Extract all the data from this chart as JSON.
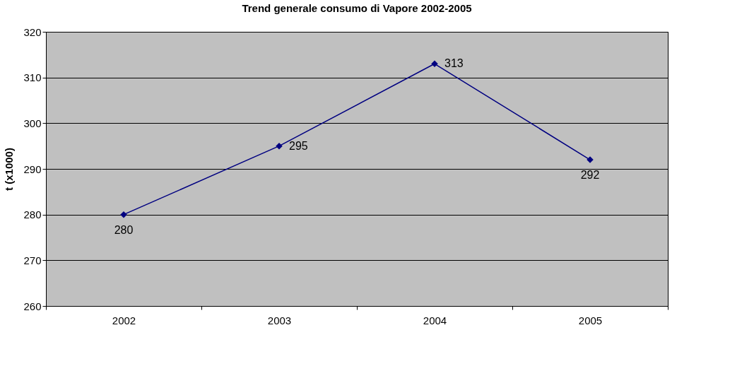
{
  "chart_data": {
    "type": "line",
    "title": "Trend generale consumo di Vapore 2002-2005",
    "ylabel": "t (x1000)",
    "categories": [
      "2002",
      "2003",
      "2004",
      "2005"
    ],
    "series": [
      {
        "color": "#000080",
        "values": [
          280,
          295,
          313,
          292
        ]
      }
    ],
    "ylim": [
      260,
      320
    ],
    "yticks": [
      260,
      270,
      280,
      290,
      300,
      310,
      320
    ],
    "grid": "y",
    "marker": "diamond",
    "line_style": "solid",
    "data_labels": true,
    "legend": false
  }
}
